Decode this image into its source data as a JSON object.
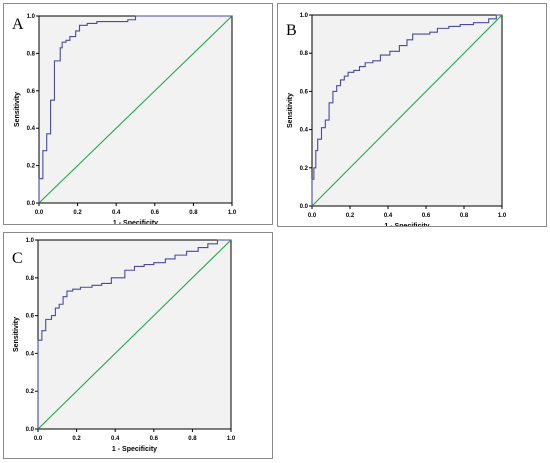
{
  "chart_data": [
    {
      "panel": "A",
      "type": "line",
      "xlabel": "1 - Specificity",
      "ylabel": "Sensitivity",
      "xlim": [
        0,
        1
      ],
      "ylim": [
        0,
        1
      ],
      "xticks": [
        "0.0",
        "0.2",
        "0.4",
        "0.6",
        "0.8",
        "1.0"
      ],
      "yticks": [
        "0.0",
        "0.2",
        "0.4",
        "0.6",
        "0.8",
        "1.0"
      ],
      "colors": {
        "roc": "#4a4aa0",
        "reference": "#1fa84a",
        "plot_bg": "#f2f2f2"
      },
      "series": [
        {
          "x": [
            0,
            0,
            0.02,
            0.02,
            0.04,
            0.04,
            0.06,
            0.06,
            0.08,
            0.08,
            0.11,
            0.11,
            0.12,
            0.12,
            0.14,
            0.14,
            0.16,
            0.16,
            0.19,
            0.19,
            0.21,
            0.21,
            0.25,
            0.25,
            0.3,
            0.3,
            0.46,
            0.46,
            0.5,
            0.5,
            1.0
          ],
          "y": [
            0,
            0.13,
            0.13,
            0.28,
            0.28,
            0.37,
            0.37,
            0.55,
            0.55,
            0.76,
            0.76,
            0.83,
            0.83,
            0.86,
            0.86,
            0.87,
            0.87,
            0.89,
            0.89,
            0.92,
            0.92,
            0.95,
            0.95,
            0.96,
            0.96,
            0.97,
            0.97,
            0.98,
            0.98,
            1.0,
            1.0
          ]
        },
        {
          "x": [
            0,
            1
          ],
          "y": [
            0,
            1
          ]
        }
      ]
    },
    {
      "panel": "B",
      "type": "line",
      "xlabel": "1 - Specificity",
      "ylabel": "Sensitivity",
      "xlim": [
        0,
        1
      ],
      "ylim": [
        0,
        1
      ],
      "xticks": [
        "0.0",
        "0.2",
        "0.4",
        "0.6",
        "0.8",
        "1.0"
      ],
      "yticks": [
        "0.0",
        "0.2",
        "0.4",
        "0.6",
        "0.8",
        "1.0"
      ],
      "colors": {
        "roc": "#4a4aa0",
        "reference": "#1fa84a",
        "plot_bg": "#f2f2f2"
      },
      "series": [
        {
          "x": [
            0,
            0,
            0.01,
            0.01,
            0.02,
            0.02,
            0.03,
            0.03,
            0.05,
            0.05,
            0.07,
            0.07,
            0.09,
            0.09,
            0.11,
            0.11,
            0.13,
            0.13,
            0.15,
            0.15,
            0.17,
            0.17,
            0.19,
            0.19,
            0.22,
            0.22,
            0.25,
            0.25,
            0.28,
            0.28,
            0.32,
            0.32,
            0.36,
            0.36,
            0.41,
            0.41,
            0.46,
            0.46,
            0.5,
            0.5,
            0.53,
            0.53,
            0.62,
            0.62,
            0.66,
            0.66,
            0.72,
            0.72,
            0.78,
            0.78,
            0.85,
            0.85,
            0.93,
            0.93,
            0.97,
            0.97,
            1.0
          ],
          "y": [
            0,
            0.14,
            0.14,
            0.2,
            0.2,
            0.29,
            0.29,
            0.35,
            0.35,
            0.41,
            0.41,
            0.45,
            0.45,
            0.54,
            0.54,
            0.6,
            0.6,
            0.63,
            0.63,
            0.66,
            0.66,
            0.68,
            0.68,
            0.7,
            0.7,
            0.71,
            0.71,
            0.73,
            0.73,
            0.75,
            0.75,
            0.76,
            0.76,
            0.79,
            0.79,
            0.81,
            0.81,
            0.84,
            0.84,
            0.87,
            0.87,
            0.9,
            0.9,
            0.91,
            0.91,
            0.93,
            0.93,
            0.94,
            0.94,
            0.95,
            0.95,
            0.96,
            0.96,
            0.98,
            0.98,
            1.0,
            1.0
          ]
        },
        {
          "x": [
            0,
            1
          ],
          "y": [
            0,
            1
          ]
        }
      ]
    },
    {
      "panel": "C",
      "type": "line",
      "xlabel": "1 - Specificity",
      "ylabel": "Sensitivity",
      "xlim": [
        0,
        1
      ],
      "ylim": [
        0,
        1
      ],
      "xticks": [
        "0.0",
        "0.2",
        "0.4",
        "0.6",
        "0.8",
        "1.0"
      ],
      "yticks": [
        "0.0",
        "0.2",
        "0.4",
        "0.6",
        "0.8",
        "1.0"
      ],
      "colors": {
        "roc": "#4a4aa0",
        "reference": "#1fa84a",
        "plot_bg": "#f2f2f2"
      },
      "series": [
        {
          "x": [
            0,
            0,
            0.02,
            0.02,
            0.04,
            0.04,
            0.07,
            0.07,
            0.09,
            0.09,
            0.11,
            0.11,
            0.13,
            0.13,
            0.15,
            0.15,
            0.18,
            0.18,
            0.22,
            0.22,
            0.28,
            0.28,
            0.33,
            0.33,
            0.38,
            0.38,
            0.45,
            0.45,
            0.5,
            0.5,
            0.55,
            0.55,
            0.6,
            0.6,
            0.66,
            0.66,
            0.71,
            0.71,
            0.77,
            0.77,
            0.83,
            0.83,
            0.88,
            0.88,
            0.93,
            0.93,
            1.0
          ],
          "y": [
            0,
            0.47,
            0.47,
            0.52,
            0.52,
            0.58,
            0.58,
            0.6,
            0.6,
            0.64,
            0.64,
            0.66,
            0.66,
            0.7,
            0.7,
            0.73,
            0.73,
            0.74,
            0.74,
            0.75,
            0.75,
            0.76,
            0.76,
            0.77,
            0.77,
            0.8,
            0.8,
            0.84,
            0.84,
            0.86,
            0.86,
            0.87,
            0.87,
            0.88,
            0.88,
            0.9,
            0.9,
            0.92,
            0.92,
            0.94,
            0.94,
            0.96,
            0.96,
            0.98,
            0.98,
            1.0,
            1.0
          ]
        },
        {
          "x": [
            0,
            1
          ],
          "y": [
            0,
            1
          ]
        }
      ]
    }
  ]
}
